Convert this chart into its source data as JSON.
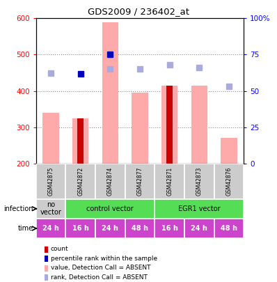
{
  "title": "GDS2009 / 236402_at",
  "samples": [
    "GSM42875",
    "GSM42872",
    "GSM42874",
    "GSM42877",
    "GSM42871",
    "GSM42873",
    "GSM42876"
  ],
  "pink_bar_values": [
    340,
    325,
    590,
    395,
    415,
    415,
    270
  ],
  "dark_red_values": [
    null,
    325,
    null,
    null,
    415,
    null,
    null
  ],
  "blue_square_values": [
    null,
    448,
    500,
    null,
    null,
    null,
    null
  ],
  "light_blue_square_values": [
    450,
    null,
    460,
    460,
    472,
    465,
    412
  ],
  "ymin": 200,
  "ymax": 600,
  "yticks_left": [
    200,
    300,
    400,
    500,
    600
  ],
  "yticks_right": [
    0,
    25,
    50,
    75,
    100
  ],
  "time_labels": [
    "24 h",
    "16 h",
    "24 h",
    "48 h",
    "16 h",
    "24 h",
    "48 h"
  ],
  "infection_label": "infection",
  "time_label": "time",
  "legend_items": [
    {
      "label": "count",
      "color": "#cc0000"
    },
    {
      "label": "percentile rank within the sample",
      "color": "#0000bb"
    },
    {
      "label": "value, Detection Call = ABSENT",
      "color": "#ffaaaa"
    },
    {
      "label": "rank, Detection Call = ABSENT",
      "color": "#aaaadd"
    }
  ],
  "pink_bar_color": "#ffaaaa",
  "dark_red_color": "#cc0000",
  "dark_blue_color": "#0000bb",
  "light_blue_color": "#aaaadd",
  "no_vector_color": "#cccccc",
  "control_vector_color": "#55dd55",
  "egr1_vector_color": "#55dd55",
  "gsm_bg_color": "#cccccc",
  "time_bg_color": "#cc44cc"
}
